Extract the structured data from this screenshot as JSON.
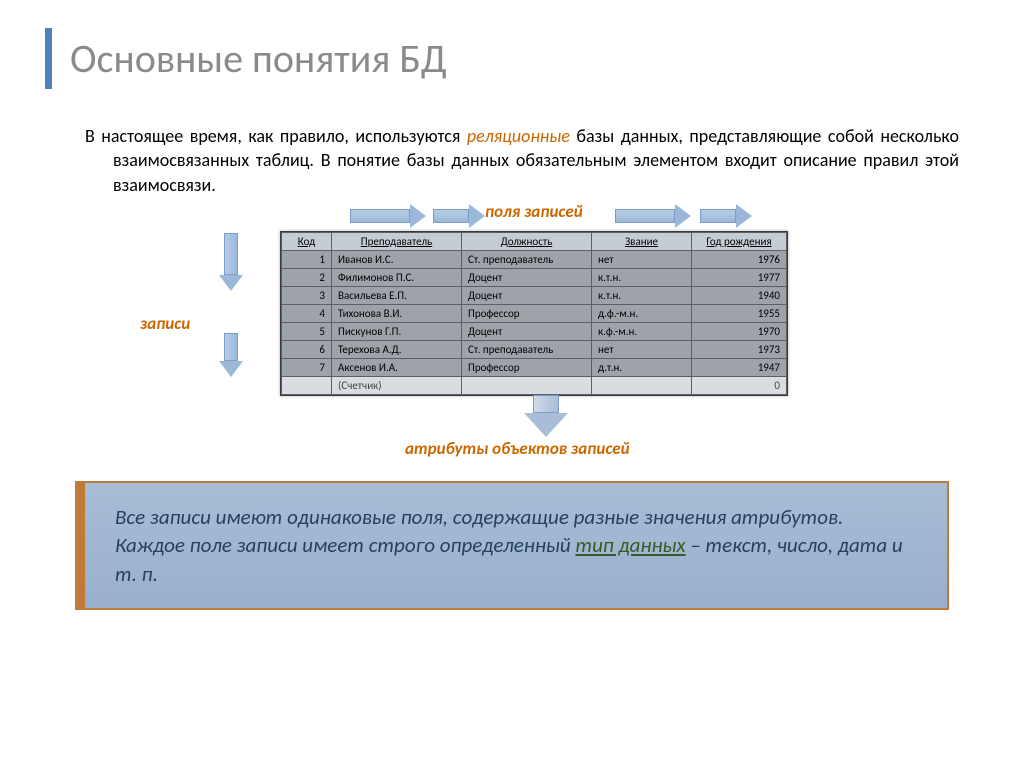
{
  "title": "Основные понятия БД",
  "paragraph_before": "В настоящее время, как правило, используются ",
  "paragraph_hl": "реляционные",
  "paragraph_after": " базы данных, представляющие собой несколько взаимосвязанных таблиц. В понятие базы данных обязательным элементом входит описание правил этой взаимосвязи.",
  "labels": {
    "fields_top": "поля записей",
    "records": "записи",
    "attributes": "атрибуты объектов записей"
  },
  "table": {
    "columns": [
      "Код",
      "Преподаватель",
      "Должность",
      "Звание",
      "Год рождения"
    ],
    "rows": [
      [
        "1",
        "Иванов И.С.",
        "Ст. преподаватель",
        "нет",
        "1976"
      ],
      [
        "2",
        "Филимонов П.С.",
        "Доцент",
        "к.т.н.",
        "1977"
      ],
      [
        "3",
        "Васильева Е.П.",
        "Доцент",
        "к.т.н.",
        "1940"
      ],
      [
        "4",
        "Тихонова В.И.",
        "Профессор",
        "д.ф.-м.н.",
        "1955"
      ],
      [
        "5",
        "Пискунов Г.П.",
        "Доцент",
        "к.ф.-м.н.",
        "1970"
      ],
      [
        "6",
        "Терехова А.Д.",
        "Ст. преподаватель",
        "нет",
        "1973"
      ],
      [
        "7",
        "Аксенов И.А.",
        "Профессор",
        "д.т.н.",
        "1947"
      ]
    ],
    "footer": [
      "",
      "(Счетчик)",
      "",
      "",
      "0"
    ],
    "col_widths": [
      "50px",
      "130px",
      "130px",
      "100px",
      "95px"
    ]
  },
  "summary": {
    "t1": "Все записи имеют одинаковые поля, содержащие разные значения атрибутов. Каждое поле записи имеет строго определенный ",
    "ul": "тип данных",
    "t2": " – текст, число, дата и т. п."
  },
  "colors": {
    "title_bar": "#4f81bd",
    "title_text": "#8a8a8a",
    "highlight": "#cc6600",
    "arrow_fill": "#9bb8d9",
    "summary_border": "#c07a3a",
    "summary_bg": "#a0b7d1",
    "summary_text": "#254061"
  }
}
